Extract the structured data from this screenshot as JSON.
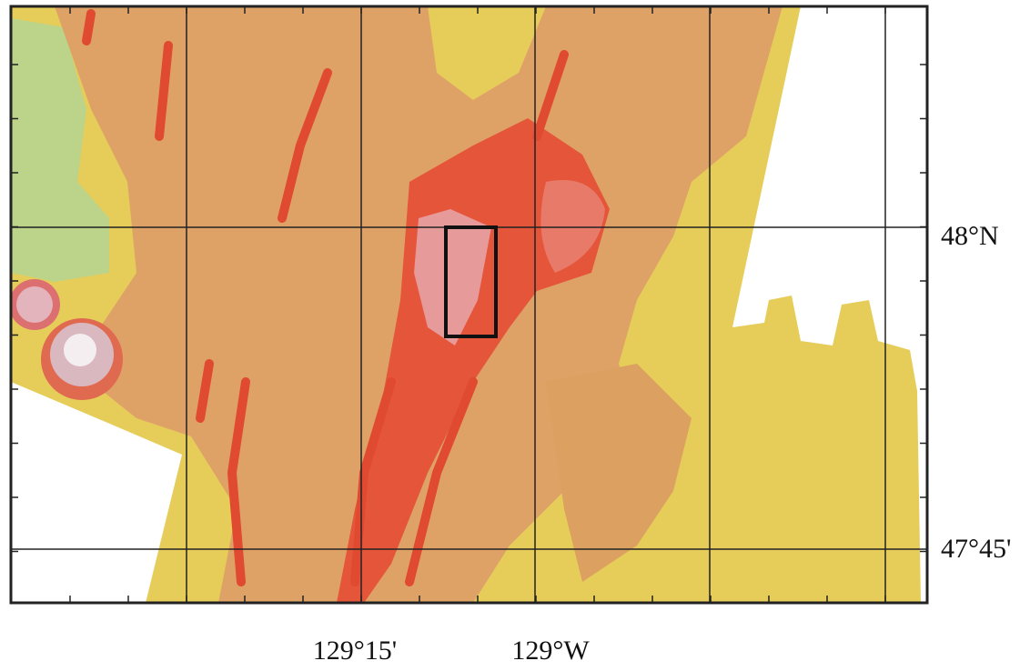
{
  "latitude_labels": [
    "48°N",
    "47°45'"
  ],
  "longitude_labels": [
    "129°15'",
    "129°W"
  ]
}
